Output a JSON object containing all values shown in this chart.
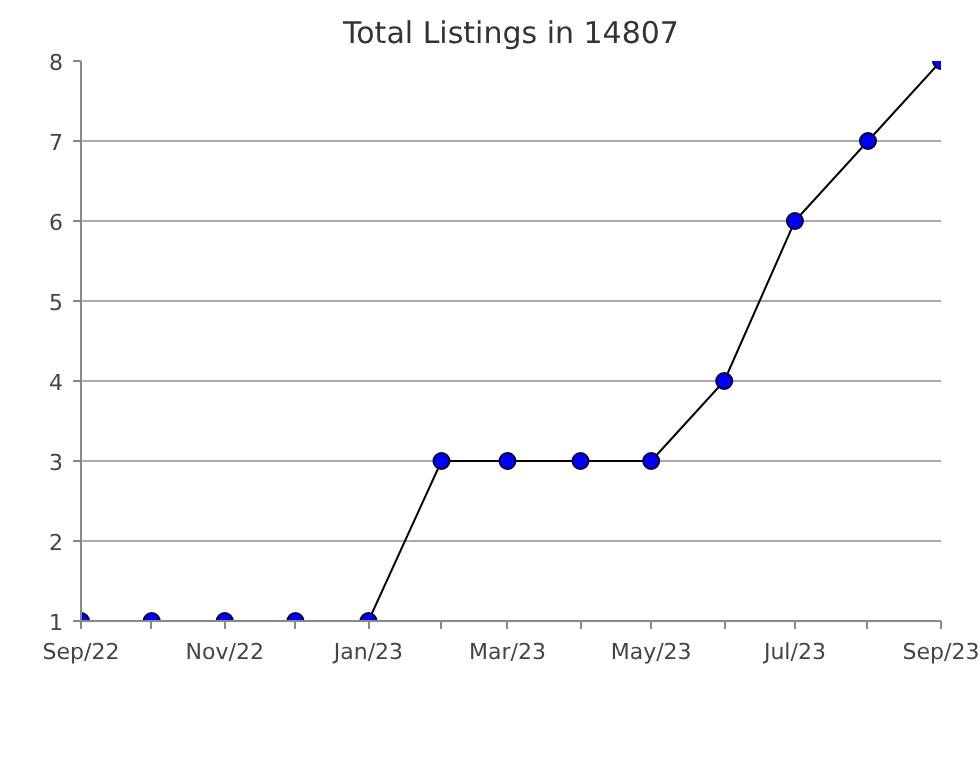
{
  "chart_data": {
    "type": "line",
    "title": "Total Listings in 14807",
    "x": [
      "2022-09",
      "2022-10",
      "2022-11",
      "2022-12",
      "2023-01",
      "2023-02",
      "2023-03",
      "2023-04",
      "2023-05",
      "2023-06",
      "2023-07",
      "2023-08",
      "2023-09"
    ],
    "series": [
      {
        "color": "#0000ff",
        "values": [
          1,
          1,
          1,
          1,
          1,
          3,
          3,
          3,
          3,
          4,
          6,
          7,
          8
        ]
      }
    ],
    "xlim": [
      "2022-09",
      "2023-09"
    ],
    "xticks": [
      {
        "value": "2022-09",
        "label": "Sep/22"
      },
      {
        "value": "2022-10",
        "label": null
      },
      {
        "value": "2022-11",
        "label": "Nov/22"
      },
      {
        "value": "2022-12",
        "label": null
      },
      {
        "value": "2023-01",
        "label": "Jan/23"
      },
      {
        "value": "2023-02",
        "label": null
      },
      {
        "value": "2023-03",
        "label": "Mar/23"
      },
      {
        "value": "2023-04",
        "label": null
      },
      {
        "value": "2023-05",
        "label": "May/23"
      },
      {
        "value": "2023-06",
        "label": null
      },
      {
        "value": "2023-07",
        "label": "Jul/23"
      },
      {
        "value": "2023-08",
        "label": null
      },
      {
        "value": "2023-09",
        "label": "Sep/23"
      }
    ],
    "ylim": [
      1,
      8
    ],
    "yticks": [
      1,
      2,
      3,
      4,
      5,
      6,
      7,
      8
    ],
    "grid": "y",
    "marker": "circle",
    "line_style": "solid"
  }
}
